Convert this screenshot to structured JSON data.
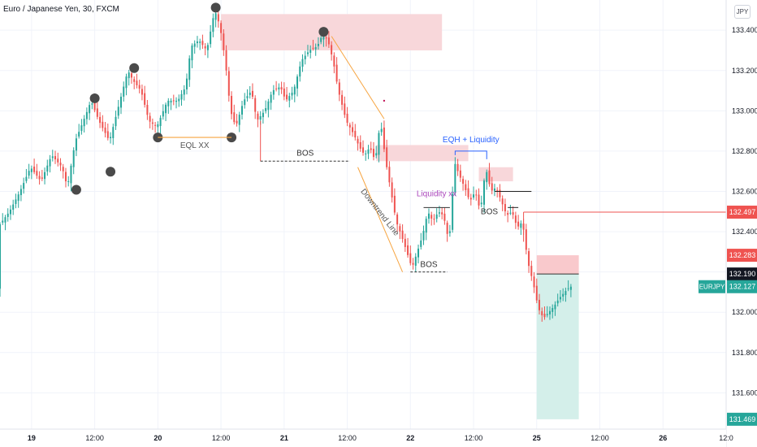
{
  "header": {
    "symbol_title": "Euro / Japanese Yen, 30, FXCM",
    "currency_button": "JPY"
  },
  "colors": {
    "up": "#26a69a",
    "down": "#ef5350",
    "supply_zone": "#f8d7da",
    "demand_zone": "#d4efea",
    "trendline": "#f7a541",
    "liquidity_text": "#ab47bc",
    "eqh_text": "#2962ff"
  },
  "chart_data": {
    "type": "candlestick",
    "title": "Euro / Japanese Yen, 30, FXCM",
    "ylim": [
      131.42,
      133.55
    ],
    "y_ticks": [
      133.4,
      133.2,
      133.0,
      132.8,
      132.6,
      132.4,
      132.2,
      132.0,
      131.8,
      131.6
    ],
    "y_tick_labels": [
      "133.400",
      "133.200",
      "133.000",
      "132.800",
      "132.600",
      "132.400",
      "132.200",
      "132.000",
      "131.800",
      "131.600"
    ],
    "x_ticks": [
      {
        "label": "19",
        "index": 12
      },
      {
        "label": "12:00",
        "index": 36
      },
      {
        "label": "20",
        "index": 60
      },
      {
        "label": "12:00",
        "index": 84
      },
      {
        "label": "21",
        "index": 108
      },
      {
        "label": "12:00",
        "index": 132
      },
      {
        "label": "22",
        "index": 156
      },
      {
        "label": "12:00",
        "index": 180
      },
      {
        "label": "25",
        "index": 204
      },
      {
        "label": "12:00",
        "index": 228
      },
      {
        "label": "26",
        "index": 252
      },
      {
        "label": "12:0",
        "index": 276
      }
    ],
    "x_index_range": [
      0,
      276
    ],
    "key_prices": [
      {
        "label": "132.497",
        "value": 132.497,
        "style": "red"
      },
      {
        "label": "132.283",
        "value": 132.283,
        "style": "red"
      },
      {
        "label": "132.190",
        "value": 132.19,
        "style": "dark"
      },
      {
        "label": "132.127",
        "value": 132.127,
        "style": "green",
        "tag": "EURJPY"
      },
      {
        "label": "131.469",
        "value": 131.469,
        "style": "green"
      }
    ],
    "path": [
      [
        0,
        132.43
      ],
      [
        4,
        132.5
      ],
      [
        8,
        132.6
      ],
      [
        12,
        132.72
      ],
      [
        16,
        132.65
      ],
      [
        20,
        132.78
      ],
      [
        24,
        132.72
      ],
      [
        26,
        132.62
      ],
      [
        29,
        132.85
      ],
      [
        33,
        132.98
      ],
      [
        35,
        133.05
      ],
      [
        38,
        132.95
      ],
      [
        42,
        132.85
      ],
      [
        46,
        133.05
      ],
      [
        49,
        133.2
      ],
      [
        51,
        133.15
      ],
      [
        54,
        133.1
      ],
      [
        57,
        132.95
      ],
      [
        60,
        132.92
      ],
      [
        64,
        133.05
      ],
      [
        68,
        133.05
      ],
      [
        71,
        133.12
      ],
      [
        73,
        133.32
      ],
      [
        76,
        133.35
      ],
      [
        79,
        133.3
      ],
      [
        82,
        133.5
      ],
      [
        84,
        133.42
      ],
      [
        86,
        133.25
      ],
      [
        88,
        133.0
      ],
      [
        90,
        132.92
      ],
      [
        93,
        133.05
      ],
      [
        96,
        133.1
      ],
      [
        98,
        132.95
      ],
      [
        101,
        133.0
      ],
      [
        104,
        133.1
      ],
      [
        107,
        133.12
      ],
      [
        109,
        133.05
      ],
      [
        112,
        133.1
      ],
      [
        115,
        133.25
      ],
      [
        118,
        133.3
      ],
      [
        121,
        133.32
      ],
      [
        123,
        133.38
      ],
      [
        125,
        133.35
      ],
      [
        127,
        133.25
      ],
      [
        129,
        133.1
      ],
      [
        132,
        132.95
      ],
      [
        135,
        132.88
      ],
      [
        137,
        132.82
      ],
      [
        139,
        132.78
      ],
      [
        141,
        132.82
      ],
      [
        143,
        132.75
      ],
      [
        145,
        132.95
      ],
      [
        147,
        132.75
      ],
      [
        149,
        132.6
      ],
      [
        151,
        132.45
      ],
      [
        153,
        132.38
      ],
      [
        155,
        132.3
      ],
      [
        157,
        132.22
      ],
      [
        159,
        132.3
      ],
      [
        161,
        132.38
      ],
      [
        163,
        132.5
      ],
      [
        165,
        132.45
      ],
      [
        167,
        132.5
      ],
      [
        169,
        132.48
      ],
      [
        171,
        132.35
      ],
      [
        172,
        132.48
      ],
      [
        173,
        132.75
      ],
      [
        175,
        132.68
      ],
      [
        177,
        132.62
      ],
      [
        179,
        132.55
      ],
      [
        181,
        132.6
      ],
      [
        183,
        132.5
      ],
      [
        185,
        132.72
      ],
      [
        187,
        132.6
      ],
      [
        189,
        132.62
      ],
      [
        191,
        132.55
      ],
      [
        193,
        132.48
      ],
      [
        195,
        132.5
      ],
      [
        197,
        132.42
      ],
      [
        199,
        132.45
      ],
      [
        201,
        132.25
      ],
      [
        203,
        132.15
      ],
      [
        205,
        132.02
      ],
      [
        207,
        131.97
      ],
      [
        209,
        132.0
      ],
      [
        211,
        132.03
      ],
      [
        213,
        132.07
      ],
      [
        215,
        132.1
      ],
      [
        217,
        132.127
      ]
    ],
    "highs": [
      {
        "index": 82,
        "value": 133.5
      },
      {
        "index": 36,
        "value": 133.05
      },
      {
        "index": 51,
        "value": 133.2
      },
      {
        "index": 123,
        "value": 133.38
      }
    ],
    "lows": [
      {
        "index": 29,
        "value": 132.62
      },
      {
        "index": 42,
        "value": 132.71
      },
      {
        "index": 60,
        "value": 132.88
      },
      {
        "index": 88,
        "value": 132.88
      },
      {
        "index": 157,
        "value": 132.2
      },
      {
        "index": 207,
        "value": 131.93
      }
    ]
  },
  "annotations": {
    "eql": "EQL XX",
    "bos_1": "BOS",
    "bos_2": "BOS",
    "bos_3": "BOS",
    "downtrend_line": "Downtrend Line",
    "liquidity": "Liquidity",
    "liquidity_xx": "xx",
    "eqh": "EQH + Liquidity"
  },
  "zones": {
    "supply_top": {
      "x": [
        84,
        168
      ],
      "y": [
        133.3,
        133.48
      ]
    },
    "supply_mid": {
      "x": [
        143,
        178
      ],
      "y": [
        132.75,
        132.83
      ]
    },
    "supply_small": {
      "x": [
        182,
        195
      ],
      "y": [
        132.65,
        132.72
      ]
    },
    "sl_zone": {
      "x": [
        204,
        220
      ],
      "y": [
        132.19,
        132.283
      ]
    },
    "tp_zone": {
      "x": [
        204,
        220
      ],
      "y": [
        131.469,
        132.19
      ]
    }
  }
}
